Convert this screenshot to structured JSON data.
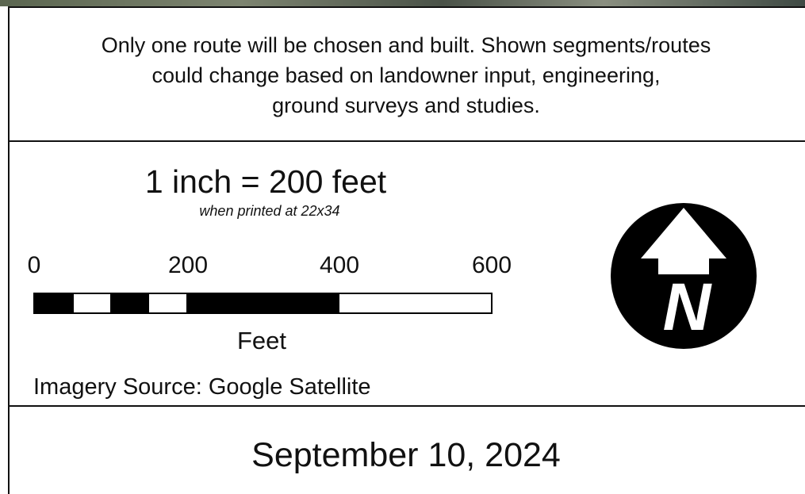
{
  "note": {
    "lines": [
      "Only one route will be chosen and built.  Shown segments/routes",
      "could change based on landowner input, engineering,",
      "ground surveys and studies."
    ]
  },
  "scale": {
    "text": "1 inch = 200 feet",
    "print_note": "when printed at 22x34",
    "bar_labels": [
      "0",
      "200",
      "400",
      "600"
    ],
    "units": "Feet"
  },
  "imagery_source": "Imagery Source: Google Satellite",
  "north_arrow": {
    "label": "N"
  },
  "date": "September 10, 2024"
}
